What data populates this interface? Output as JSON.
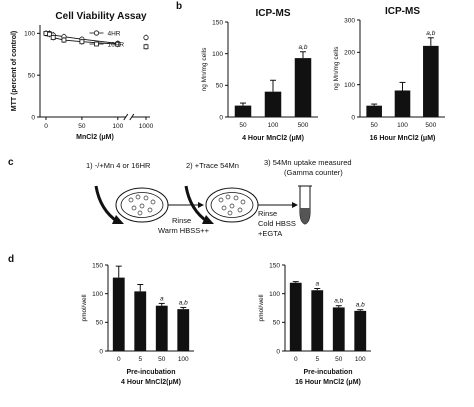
{
  "panels": {
    "a": "a",
    "b": "b",
    "c": "c",
    "d": "d"
  },
  "chart_data": [
    {
      "id": "a",
      "type": "line",
      "title": "Cell Viability Assay",
      "xlabel": "MnCl2 (μM)",
      "ylabel": "MTT (percent of control)",
      "x": [
        0,
        5,
        10,
        25,
        50,
        100,
        1000
      ],
      "xticks": [
        "0",
        "50",
        "100",
        "1000"
      ],
      "yticks": [
        "0",
        "50",
        "100"
      ],
      "ylim": [
        0,
        110
      ],
      "series": [
        {
          "name": "4HR",
          "values": [
            100,
            100,
            98,
            96,
            93,
            88,
            95
          ],
          "marker": "circle"
        },
        {
          "name": "16HR",
          "values": [
            100,
            99,
            95,
            92,
            90,
            87,
            84
          ],
          "marker": "square"
        }
      ],
      "legend": "top-right"
    },
    {
      "id": "b1",
      "type": "bar",
      "title": "ICP-MS",
      "xlabel": "4 Hour MnCl2 (μM)",
      "ylabel": "ng Mn/mg cells",
      "categories": [
        "50",
        "100",
        "500"
      ],
      "values": [
        18,
        40,
        93
      ],
      "errors": [
        4,
        18,
        10
      ],
      "annotations": [
        "",
        "",
        "a,b"
      ],
      "ylim": [
        0,
        150
      ],
      "yticks": [
        "0",
        "50",
        "100",
        "150"
      ]
    },
    {
      "id": "b2",
      "type": "bar",
      "title": "ICP-MS",
      "xlabel": "16 Hour MnCl2 (μM)",
      "ylabel": "ng Mn/mg cells",
      "categories": [
        "50",
        "100",
        "500"
      ],
      "values": [
        35,
        82,
        220
      ],
      "errors": [
        5,
        25,
        25
      ],
      "annotations": [
        "",
        "",
        "a,b"
      ],
      "ylim": [
        0,
        300
      ],
      "yticks": [
        "0",
        "100",
        "200",
        "300"
      ]
    },
    {
      "id": "d1",
      "type": "bar",
      "xlabel": "Pre-incubation",
      "xlabel2": "4 Hour MnCl2(μM)",
      "ylabel": "pmol/well",
      "categories": [
        "0",
        "5",
        "50",
        "100"
      ],
      "values": [
        128,
        104,
        79,
        73
      ],
      "errors": [
        20,
        12,
        4,
        3
      ],
      "annotations": [
        "",
        "",
        "a",
        "a,b"
      ],
      "ylim": [
        0,
        150
      ],
      "yticks": [
        "0",
        "50",
        "100",
        "150"
      ]
    },
    {
      "id": "d2",
      "type": "bar",
      "xlabel": "Pre-incubation",
      "xlabel2": "16 Hour MnCl2 (μM)",
      "ylabel": "pmol/well",
      "categories": [
        "0",
        "5",
        "50",
        "100"
      ],
      "values": [
        119,
        106,
        76,
        70
      ],
      "errors": [
        2,
        3,
        3,
        2
      ],
      "annotations": [
        "",
        "a",
        "a,b",
        "a,b"
      ],
      "ylim": [
        0,
        150
      ],
      "yticks": [
        "0",
        "50",
        "100",
        "150"
      ]
    }
  ],
  "schematic": {
    "step1": "1) -/+Mn 4 or 16HR",
    "step2": "2) +Trace 54Mn",
    "step3": "3) 54Mn uptake measured",
    "step3b": "(Gamma counter)",
    "rinse1a": "Rinse",
    "rinse1b": "Warm HBSS++",
    "rinse2a": "Rinse",
    "rinse2b": "Cold HBSS",
    "rinse2c": "+EGTA"
  }
}
